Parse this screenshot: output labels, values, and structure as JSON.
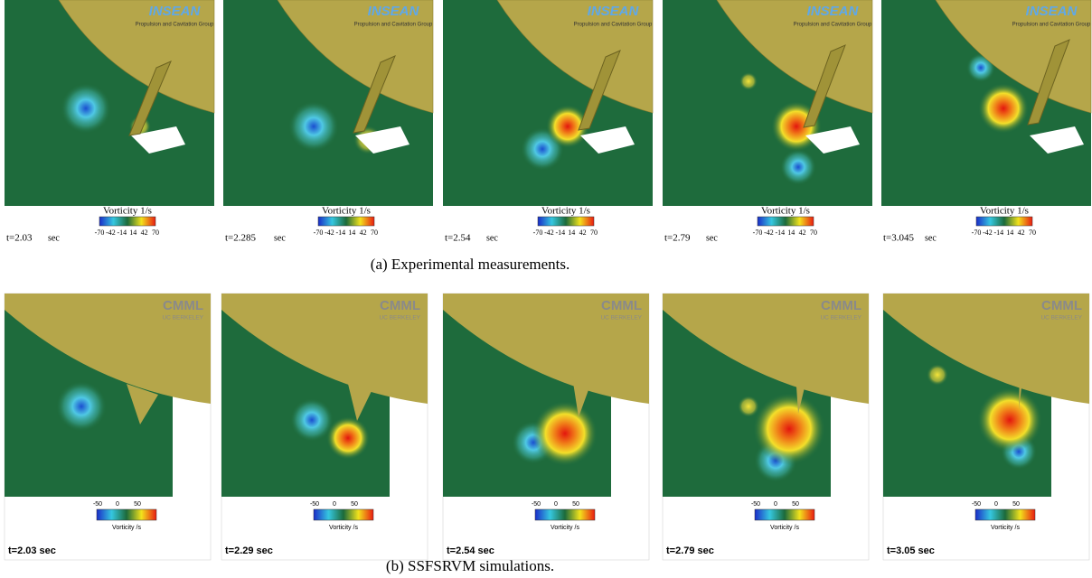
{
  "experimental": {
    "caption": "(a) Experimental measurements.",
    "colorbar_title": "Vorticity 1/s",
    "colorbar_ticks": [
      -70,
      -42,
      -14,
      14,
      42,
      70
    ],
    "logo": "INSEAN",
    "logo_subtitle": "Propulsion and Cavitation Group",
    "unit": "sec",
    "times": [
      "t=2.03",
      "t=2.285",
      "t=2.54",
      "t=2.79",
      "t=3.045"
    ]
  },
  "simulation": {
    "caption": "(b) SSFSRVM simulations.",
    "colorbar_title": "Vorticity /s",
    "colorbar_ticks": [
      -50,
      0,
      50
    ],
    "logo": "CMML",
    "logo_subtitle": "UC BERKELEY",
    "times": [
      "t=2.03 sec",
      "t=2.29 sec",
      "t=2.54 sec",
      "t=2.79 sec",
      "t=3.05 sec"
    ]
  }
}
